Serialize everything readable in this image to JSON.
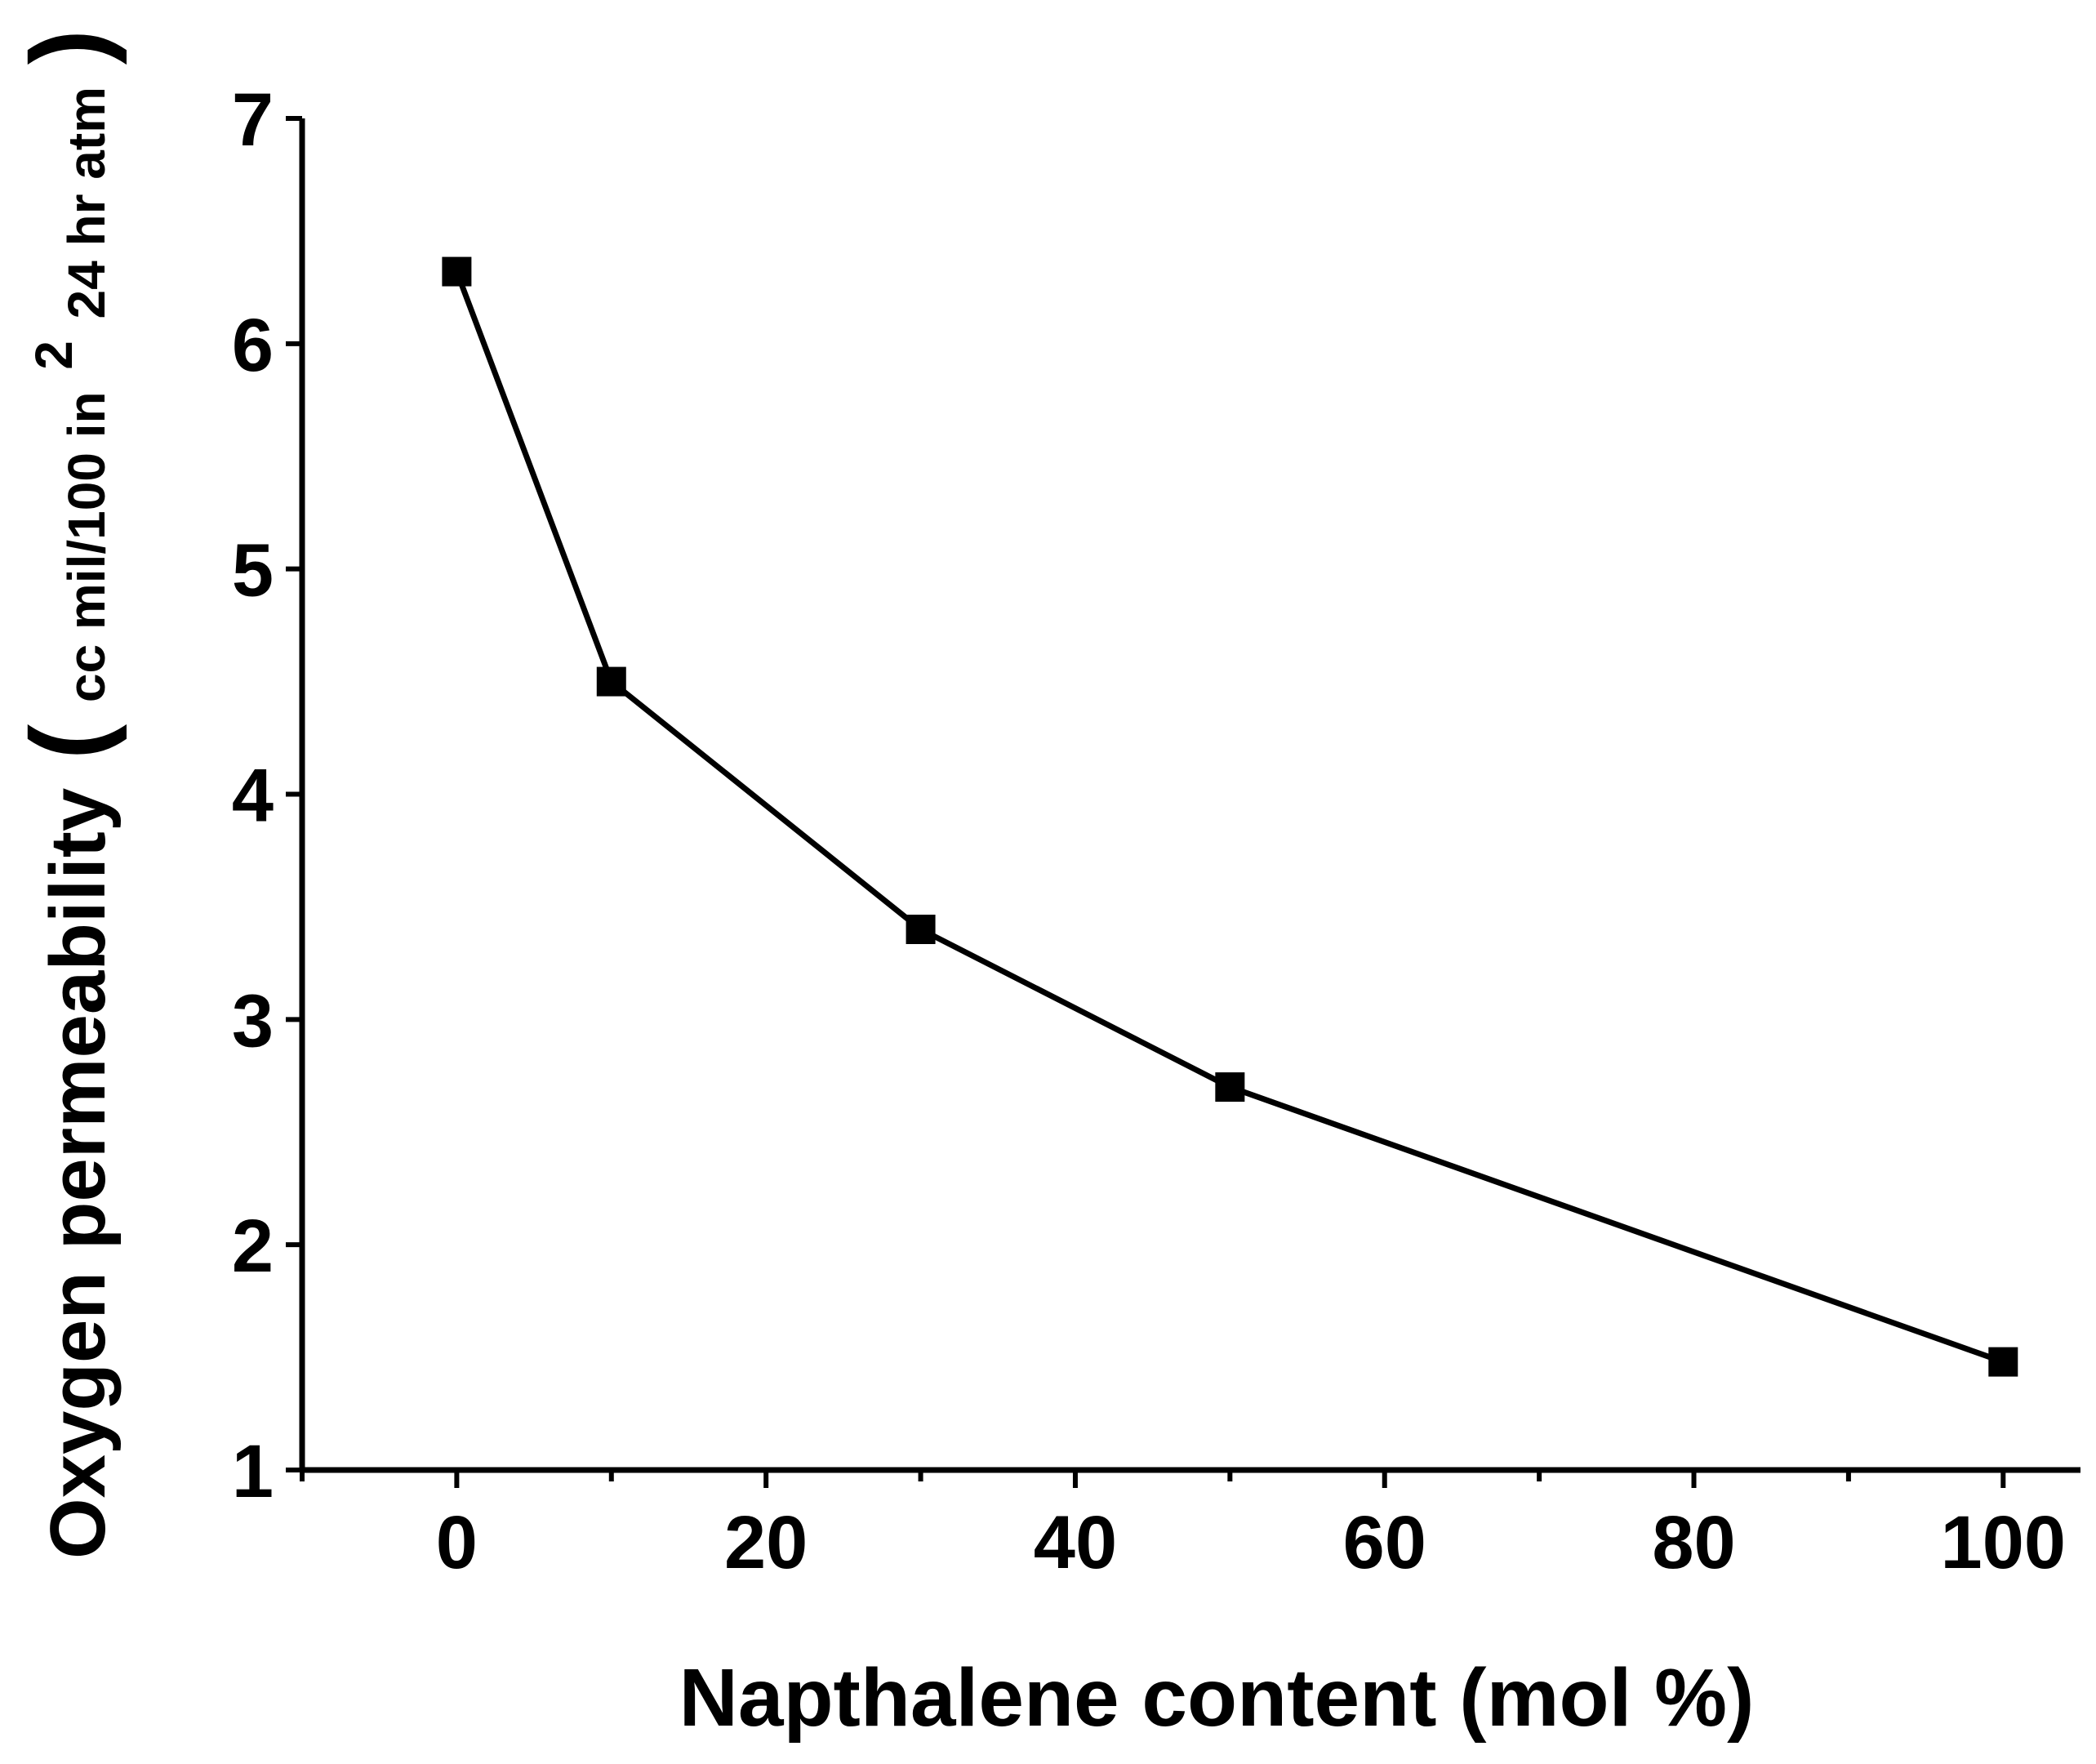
{
  "chart_data": {
    "type": "line",
    "title": "",
    "xlabel": "Napthalene content (mol %)",
    "ylabel": {
      "main": "Oxygen permeability",
      "unit_prefix": "cc mil/100 in",
      "unit_superscript": "2",
      "unit_suffix": " 24 hr atm"
    },
    "xlim": [
      -10,
      105
    ],
    "ylim": [
      1,
      7
    ],
    "xticks": [
      0,
      20,
      40,
      60,
      80,
      100
    ],
    "xticks_minor": [
      -10,
      10,
      30,
      50,
      70,
      90
    ],
    "yticks": [
      1,
      2,
      3,
      4,
      5,
      6,
      7
    ],
    "grid": false,
    "legend": "none",
    "series": [
      {
        "x": [
          0,
          10,
          30,
          50,
          100
        ],
        "y": [
          6.32,
          4.5,
          3.4,
          2.7,
          1.48
        ],
        "marker": "square",
        "color": "#000000"
      }
    ]
  }
}
